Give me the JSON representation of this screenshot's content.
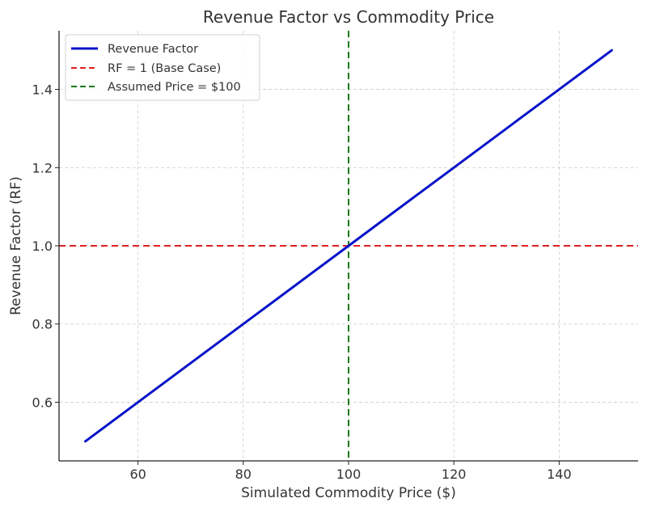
{
  "chart_data": {
    "type": "line",
    "title": "Revenue Factor vs Commodity Price",
    "xlabel": "Simulated Commodity Price ($)",
    "ylabel": "Revenue Factor (RF)",
    "xlim": [
      45.0,
      155.0
    ],
    "ylim": [
      0.45,
      1.55
    ],
    "xticks": [
      60,
      80,
      100,
      120,
      140
    ],
    "yticks": [
      0.6,
      0.8,
      1.0,
      1.2,
      1.4
    ],
    "xtick_labels": [
      "60",
      "80",
      "100",
      "120",
      "140"
    ],
    "ytick_labels": [
      "0.6",
      "0.8",
      "1.0",
      "1.2",
      "1.4"
    ],
    "grid": true,
    "legend_position": "upper left",
    "series": [
      {
        "name": "Revenue Factor",
        "style": "solid",
        "color": "#0a14c8",
        "x": [
          50,
          60,
          70,
          80,
          90,
          100,
          110,
          120,
          130,
          140,
          150
        ],
        "y": [
          0.5,
          0.6,
          0.7,
          0.8,
          0.9,
          1.0,
          1.1,
          1.2,
          1.3,
          1.4,
          1.5
        ]
      },
      {
        "name": "RF = 1 (Base Case)",
        "style": "dashed",
        "orientation": "horizontal",
        "color": "#e02020",
        "y": 1.0
      },
      {
        "name": "Assumed Price = $100",
        "style": "dashed",
        "orientation": "vertical",
        "color": "#1a7a1a",
        "x": 100
      }
    ]
  }
}
